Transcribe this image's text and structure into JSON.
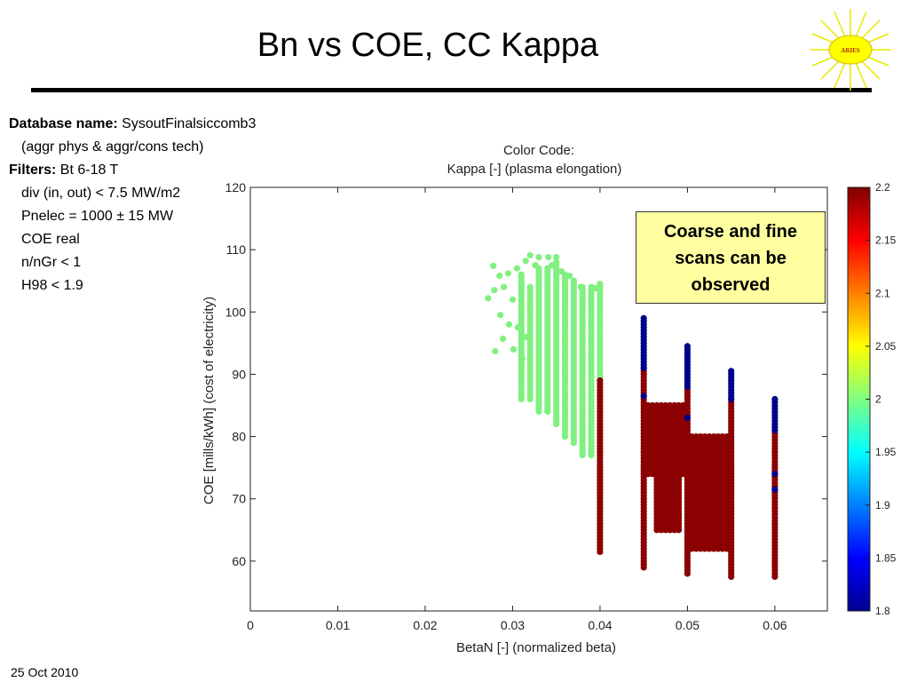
{
  "slide": {
    "title": "Bn vs COE, CC Kappa",
    "logo_text": "ARIES",
    "date": "25 Oct 2010"
  },
  "info": {
    "database_label": "Database name:",
    "database_value": "SysoutFinalsiccomb3",
    "database_note": "(aggr phys & aggr/cons tech)",
    "filters_label": "Filters:",
    "filters": [
      "Bt 6-18 T",
      "div (in, out) < 7.5 MW/m2",
      "Pnelec = 1000 ± 15 MW",
      "COE real",
      "n/nGr < 1",
      "H98 < 1.9"
    ]
  },
  "callout": {
    "lines": [
      "Coarse and fine",
      "scans can be",
      "observed"
    ]
  },
  "chart_data": {
    "type": "scatter",
    "title": "",
    "color_code_title": "Color Code:",
    "color_code_subtitle": "Kappa [-] (plasma elongation)",
    "xlabel": "BetaN [-] (normalized beta)",
    "ylabel": "COE [mills/kWh] (cost of electricity)",
    "xlim": [
      0,
      0.066
    ],
    "ylim": [
      52,
      120
    ],
    "xticks": [
      0,
      0.01,
      0.02,
      0.03,
      0.04,
      0.05,
      0.06
    ],
    "xtick_labels": [
      "0",
      "0.01",
      "0.02",
      "0.03",
      "0.04",
      "0.05",
      "0.06"
    ],
    "yticks": [
      60,
      70,
      80,
      90,
      100,
      110,
      120
    ],
    "ytick_labels": [
      "60",
      "70",
      "80",
      "90",
      "100",
      "110",
      "120"
    ],
    "grid": false,
    "colorbar": {
      "label": "Kappa [-]",
      "range": [
        1.8,
        2.2
      ],
      "ticks": [
        2.2,
        2.15,
        2.1,
        2.05,
        2.0,
        1.95,
        1.9,
        1.85,
        1.8
      ],
      "tick_labels": [
        "2.2",
        "2.15",
        "2.1",
        "2.05",
        "2",
        "1.95",
        "1.9",
        "1.85",
        "1.8"
      ]
    },
    "series": [
      {
        "color_value": "2.0",
        "color": "#80f080",
        "points": [
          {
            "x": 0.0272,
            "y": 102.2
          },
          {
            "x": 0.0278,
            "y": 107.4
          },
          {
            "x": 0.0279,
            "y": 103.5
          },
          {
            "x": 0.028,
            "y": 93.7
          },
          {
            "x": 0.0285,
            "y": 105.8
          },
          {
            "x": 0.0286,
            "y": 99.5
          },
          {
            "x": 0.0289,
            "y": 95.7
          },
          {
            "x": 0.029,
            "y": 104.0
          },
          {
            "x": 0.0295,
            "y": 106.2
          },
          {
            "x": 0.0296,
            "y": 98.0
          },
          {
            "x": 0.03,
            "y": 102.0
          },
          {
            "x": 0.0301,
            "y": 94.0
          },
          {
            "x": 0.0305,
            "y": 107.0
          },
          {
            "x": 0.0306,
            "y": 97.5
          },
          {
            "x": 0.031,
            "y": 104.6
          },
          {
            "x": 0.0311,
            "y": 92.5
          },
          {
            "x": 0.0315,
            "y": 108.2
          },
          {
            "x": 0.0316,
            "y": 96.0
          },
          {
            "x": 0.032,
            "y": 109.1
          },
          {
            "x": 0.032,
            "y": 101.0
          },
          {
            "x": 0.0326,
            "y": 107.5
          },
          {
            "x": 0.033,
            "y": 108.8
          },
          {
            "x": 0.0341,
            "y": 108.8
          },
          {
            "x": 0.0345,
            "y": 107.5
          },
          {
            "x": 0.035,
            "y": 108.8
          },
          {
            "x": 0.0356,
            "y": 106.5
          },
          {
            "x": 0.0365,
            "y": 105.8
          },
          {
            "x": 0.0378,
            "y": 104.0
          },
          {
            "x": 0.0395,
            "y": 103.8
          },
          {
            "x": 0.04,
            "y": 104.5
          }
        ],
        "columns": [
          {
            "x": 0.031,
            "y_min": 86,
            "y_max": 106
          },
          {
            "x": 0.032,
            "y_min": 86,
            "y_max": 104
          },
          {
            "x": 0.033,
            "y_min": 84,
            "y_max": 107
          },
          {
            "x": 0.034,
            "y_min": 84,
            "y_max": 107
          },
          {
            "x": 0.035,
            "y_min": 82,
            "y_max": 108
          },
          {
            "x": 0.036,
            "y_min": 80,
            "y_max": 106
          },
          {
            "x": 0.037,
            "y_min": 79,
            "y_max": 105
          },
          {
            "x": 0.038,
            "y_min": 77,
            "y_max": 104
          },
          {
            "x": 0.039,
            "y_min": 77,
            "y_max": 104
          },
          {
            "x": 0.04,
            "y_min": 89,
            "y_max": 104
          }
        ]
      },
      {
        "color_value": "2.2",
        "color": "#8b0000",
        "columns": [
          {
            "x": 0.04,
            "y_min": 61.5,
            "y_max": 89
          },
          {
            "x": 0.045,
            "y_min": 59,
            "y_max": 91
          },
          {
            "x": 0.05,
            "y_min": 58,
            "y_max": 88
          },
          {
            "x": 0.055,
            "y_min": 57.5,
            "y_max": 86
          },
          {
            "x": 0.06,
            "y_min": 57.5,
            "y_max": 81
          }
        ],
        "blocks": [
          {
            "x_min": 0.0455,
            "x_max": 0.0495,
            "y_min": 74,
            "y_max": 85
          },
          {
            "x_min": 0.0465,
            "x_max": 0.049,
            "y_min": 65,
            "y_max": 80
          },
          {
            "x_min": 0.0505,
            "x_max": 0.0545,
            "y_min": 62,
            "y_max": 80
          }
        ]
      },
      {
        "color_value": "1.8",
        "color": "#00008b",
        "columns": [
          {
            "x": 0.045,
            "y_min": 91,
            "y_max": 99
          },
          {
            "x": 0.05,
            "y_min": 88,
            "y_max": 94.5
          },
          {
            "x": 0.055,
            "y_min": 86,
            "y_max": 90.5
          },
          {
            "x": 0.06,
            "y_min": 81,
            "y_max": 86
          }
        ],
        "points": [
          {
            "x": 0.045,
            "y": 86.5
          },
          {
            "x": 0.05,
            "y": 83.0
          },
          {
            "x": 0.06,
            "y": 74.0
          },
          {
            "x": 0.06,
            "y": 71.5
          }
        ]
      }
    ]
  }
}
